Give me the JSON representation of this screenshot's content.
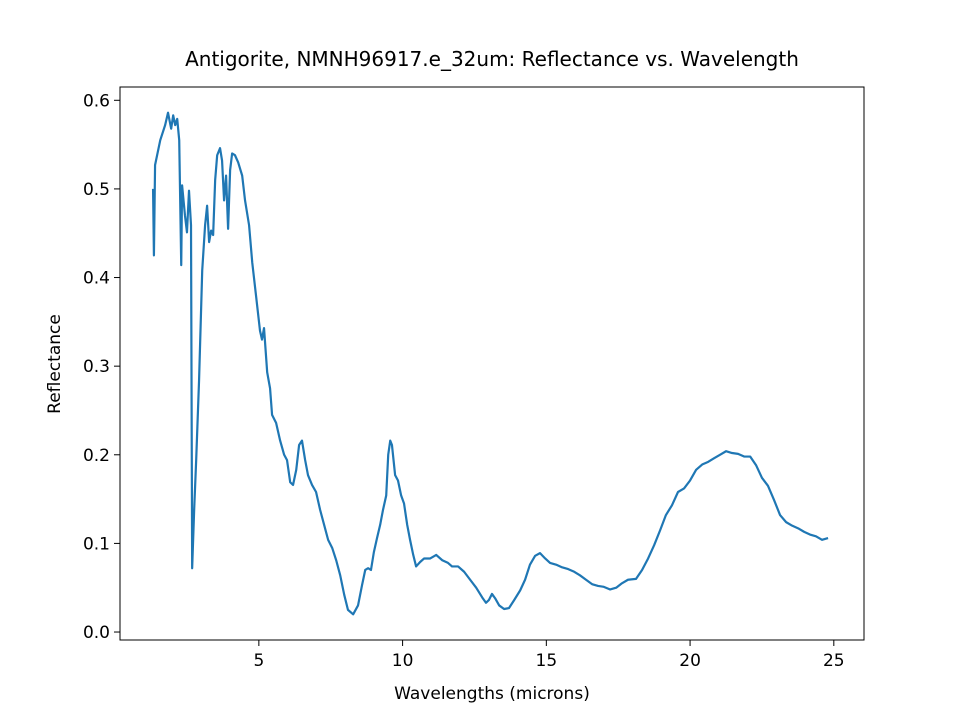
{
  "chart_data": {
    "type": "line",
    "title": "Antigorite, NMNH96917.e_32um: Reflectance vs. Wavelength",
    "xlabel": "Wavelengths (microns)",
    "ylabel": "Reflectance",
    "color": "#1f77b4",
    "xlim": [
      0.17,
      26.05
    ],
    "ylim": [
      -0.009,
      0.615
    ],
    "xticks": [
      5,
      10,
      15,
      20,
      25
    ],
    "yticks": [
      {
        "value": 0,
        "label": "0.0"
      },
      0.1,
      0.2,
      0.3,
      0.4,
      0.5,
      0.6
    ],
    "grid": false,
    "x": [
      1.32,
      1.35,
      1.39,
      1.57,
      1.74,
      1.84,
      1.95,
      2.02,
      2.09,
      2.16,
      2.23,
      2.3,
      2.33,
      2.43,
      2.5,
      2.57,
      2.64,
      2.68,
      2.75,
      2.82,
      2.92,
      3.03,
      3.13,
      3.2,
      3.27,
      3.34,
      3.41,
      3.48,
      3.55,
      3.65,
      3.72,
      3.79,
      3.86,
      3.93,
      4.0,
      4.07,
      4.17,
      4.28,
      4.42,
      4.52,
      4.66,
      4.77,
      4.9,
      5.04,
      5.11,
      5.18,
      5.29,
      5.39,
      5.46,
      5.6,
      5.74,
      5.88,
      5.98,
      6.09,
      6.19,
      6.3,
      6.4,
      6.5,
      6.61,
      6.71,
      6.85,
      6.99,
      7.13,
      7.27,
      7.41,
      7.55,
      7.69,
      7.83,
      7.97,
      8.1,
      8.28,
      8.45,
      8.59,
      8.7,
      8.8,
      8.9,
      9.0,
      9.11,
      9.22,
      9.32,
      9.43,
      9.5,
      9.57,
      9.63,
      9.74,
      9.84,
      9.95,
      10.05,
      10.16,
      10.26,
      10.37,
      10.47,
      10.61,
      10.75,
      10.96,
      11.17,
      11.38,
      11.58,
      11.72,
      11.93,
      12.14,
      12.35,
      12.56,
      12.77,
      12.9,
      13.0,
      13.11,
      13.22,
      13.36,
      13.53,
      13.7,
      13.88,
      14.09,
      14.26,
      14.43,
      14.61,
      14.78,
      14.96,
      15.13,
      15.34,
      15.55,
      15.76,
      15.97,
      16.17,
      16.38,
      16.59,
      16.8,
      17.0,
      17.22,
      17.43,
      17.63,
      17.84,
      18.12,
      18.33,
      18.54,
      18.75,
      18.96,
      19.16,
      19.37,
      19.58,
      19.79,
      20.0,
      20.21,
      20.42,
      20.63,
      20.83,
      21.04,
      21.25,
      21.46,
      21.67,
      21.88,
      22.09,
      22.3,
      22.5,
      22.71,
      22.92,
      23.13,
      23.34,
      23.55,
      23.76,
      23.97,
      24.17,
      24.38,
      24.59,
      24.8
    ],
    "values": [
      0.5,
      0.425,
      0.527,
      0.555,
      0.572,
      0.586,
      0.568,
      0.583,
      0.572,
      0.579,
      0.555,
      0.414,
      0.504,
      0.47,
      0.451,
      0.498,
      0.459,
      0.072,
      0.138,
      0.194,
      0.284,
      0.408,
      0.459,
      0.481,
      0.44,
      0.453,
      0.448,
      0.51,
      0.538,
      0.546,
      0.532,
      0.487,
      0.515,
      0.455,
      0.521,
      0.54,
      0.538,
      0.53,
      0.515,
      0.487,
      0.459,
      0.417,
      0.38,
      0.34,
      0.33,
      0.343,
      0.293,
      0.275,
      0.245,
      0.236,
      0.216,
      0.2,
      0.194,
      0.169,
      0.166,
      0.183,
      0.211,
      0.216,
      0.194,
      0.177,
      0.166,
      0.158,
      0.138,
      0.121,
      0.104,
      0.095,
      0.081,
      0.064,
      0.042,
      0.025,
      0.02,
      0.03,
      0.053,
      0.07,
      0.072,
      0.07,
      0.09,
      0.106,
      0.121,
      0.138,
      0.154,
      0.2,
      0.216,
      0.211,
      0.177,
      0.171,
      0.154,
      0.145,
      0.121,
      0.104,
      0.087,
      0.074,
      0.079,
      0.083,
      0.083,
      0.087,
      0.081,
      0.078,
      0.074,
      0.074,
      0.068,
      0.059,
      0.05,
      0.039,
      0.033,
      0.036,
      0.043,
      0.038,
      0.03,
      0.026,
      0.027,
      0.036,
      0.047,
      0.059,
      0.076,
      0.086,
      0.089,
      0.083,
      0.078,
      0.076,
      0.073,
      0.071,
      0.068,
      0.064,
      0.059,
      0.054,
      0.052,
      0.051,
      0.048,
      0.05,
      0.055,
      0.059,
      0.06,
      0.07,
      0.083,
      0.098,
      0.115,
      0.132,
      0.143,
      0.158,
      0.162,
      0.171,
      0.183,
      0.189,
      0.192,
      0.196,
      0.2,
      0.204,
      0.202,
      0.201,
      0.198,
      0.198,
      0.188,
      0.174,
      0.165,
      0.149,
      0.132,
      0.124,
      0.12,
      0.117,
      0.113,
      0.11,
      0.108,
      0.104,
      0.106
    ]
  }
}
